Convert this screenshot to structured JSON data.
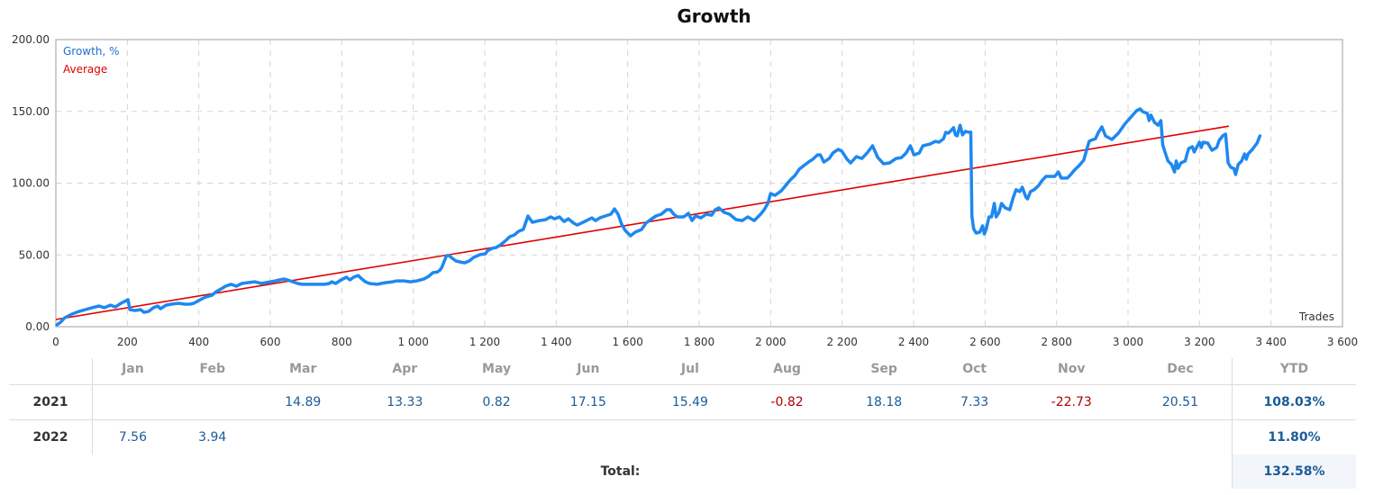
{
  "chart_data": {
    "type": "line",
    "title": "Growth",
    "xlabel": "Trades",
    "ylabel": "",
    "xlim": [
      0,
      3600
    ],
    "ylim": [
      0,
      200
    ],
    "x_ticks": [
      "0",
      "200",
      "400",
      "600",
      "800",
      "1 000",
      "1 200",
      "1 400",
      "1 600",
      "1 800",
      "2 000",
      "2 200",
      "2 400",
      "2 600",
      "2 800",
      "3 000",
      "3 200",
      "3 400",
      "3 600"
    ],
    "y_ticks": [
      "0.00",
      "50.00",
      "100.00",
      "150.00",
      "200.00"
    ],
    "grid": true,
    "legend_position": "top-left",
    "series": [
      {
        "name": "Growth, %",
        "color": "#1e88f0",
        "points": [
          [
            3,
            1.3
          ],
          [
            13,
            3.1
          ],
          [
            25,
            6.3
          ],
          [
            45,
            8.8
          ],
          [
            66,
            10.7
          ],
          [
            83,
            11.9
          ],
          [
            101,
            13.2
          ],
          [
            121,
            14.4
          ],
          [
            136,
            13.2
          ],
          [
            152,
            15
          ],
          [
            167,
            13.8
          ],
          [
            182,
            16.3
          ],
          [
            192,
            17.6
          ],
          [
            202,
            18.8
          ],
          [
            207,
            11.9
          ],
          [
            222,
            11.3
          ],
          [
            237,
            11.9
          ],
          [
            247,
            10
          ],
          [
            260,
            10.7
          ],
          [
            273,
            13.2
          ],
          [
            285,
            14.4
          ],
          [
            293,
            12.5
          ],
          [
            308,
            15
          ],
          [
            323,
            15.7
          ],
          [
            343,
            16.3
          ],
          [
            361,
            15.7
          ],
          [
            374,
            15.7
          ],
          [
            386,
            16.3
          ],
          [
            404,
            18.8
          ],
          [
            419,
            20.7
          ],
          [
            437,
            21.9
          ],
          [
            449,
            24.5
          ],
          [
            462,
            26.3
          ],
          [
            475,
            28.2
          ],
          [
            490,
            29.5
          ],
          [
            505,
            28.2
          ],
          [
            520,
            30.1
          ],
          [
            538,
            30.7
          ],
          [
            556,
            31.3
          ],
          [
            576,
            30.1
          ],
          [
            588,
            30.7
          ],
          [
            601,
            31.3
          ],
          [
            614,
            31.9
          ],
          [
            626,
            32.6
          ],
          [
            639,
            33.2
          ],
          [
            656,
            31.9
          ],
          [
            677,
            30.1
          ],
          [
            689,
            29.5
          ],
          [
            702,
            29.5
          ],
          [
            727,
            29.5
          ],
          [
            752,
            29.5
          ],
          [
            765,
            30.1
          ],
          [
            772,
            31.3
          ],
          [
            783,
            30.1
          ],
          [
            798,
            32.6
          ],
          [
            813,
            34.5
          ],
          [
            823,
            32.6
          ],
          [
            833,
            34.5
          ],
          [
            846,
            35.7
          ],
          [
            853,
            33.9
          ],
          [
            866,
            31.3
          ],
          [
            878,
            30.1
          ],
          [
            899,
            29.5
          ],
          [
            909,
            30.1
          ],
          [
            924,
            30.7
          ],
          [
            942,
            31.3
          ],
          [
            954,
            31.9
          ],
          [
            974,
            31.9
          ],
          [
            992,
            31.3
          ],
          [
            1010,
            31.9
          ],
          [
            1030,
            33.2
          ],
          [
            1043,
            35.1
          ],
          [
            1055,
            37.6
          ],
          [
            1068,
            38.2
          ],
          [
            1075,
            39.5
          ],
          [
            1080,
            41.4
          ],
          [
            1085,
            44.5
          ],
          [
            1093,
            49.5
          ],
          [
            1101,
            49.5
          ],
          [
            1106,
            48.3
          ],
          [
            1119,
            45.8
          ],
          [
            1131,
            45.1
          ],
          [
            1144,
            44.5
          ],
          [
            1157,
            45.8
          ],
          [
            1169,
            48.3
          ],
          [
            1187,
            50.2
          ],
          [
            1202,
            50.8
          ],
          [
            1207,
            52.7
          ],
          [
            1220,
            54.5
          ],
          [
            1232,
            55.2
          ],
          [
            1245,
            57.1
          ],
          [
            1257,
            59.6
          ],
          [
            1270,
            62.7
          ],
          [
            1283,
            63.9
          ],
          [
            1295,
            66.5
          ],
          [
            1308,
            67.7
          ],
          [
            1321,
            77.1
          ],
          [
            1333,
            72.7
          ],
          [
            1353,
            73.9
          ],
          [
            1371,
            74.6
          ],
          [
            1384,
            76.5
          ],
          [
            1396,
            75.2
          ],
          [
            1409,
            76.5
          ],
          [
            1422,
            73.3
          ],
          [
            1434,
            75.2
          ],
          [
            1449,
            72.1
          ],
          [
            1459,
            70.8
          ],
          [
            1480,
            73.3
          ],
          [
            1500,
            75.8
          ],
          [
            1510,
            73.9
          ],
          [
            1522,
            75.8
          ],
          [
            1537,
            77.1
          ],
          [
            1553,
            78.4
          ],
          [
            1563,
            82.1
          ],
          [
            1573,
            78.4
          ],
          [
            1583,
            71.5
          ],
          [
            1593,
            67.1
          ],
          [
            1608,
            63.3
          ],
          [
            1621,
            65.8
          ],
          [
            1639,
            67.7
          ],
          [
            1651,
            72.1
          ],
          [
            1664,
            74.6
          ],
          [
            1679,
            77.1
          ],
          [
            1694,
            78.4
          ],
          [
            1709,
            81.5
          ],
          [
            1719,
            81.5
          ],
          [
            1729,
            78.4
          ],
          [
            1739,
            76.5
          ],
          [
            1757,
            76.5
          ],
          [
            1770,
            79
          ],
          [
            1780,
            73.9
          ],
          [
            1790,
            77.1
          ],
          [
            1805,
            75.8
          ],
          [
            1820,
            78.4
          ],
          [
            1835,
            77.7
          ],
          [
            1845,
            81.5
          ],
          [
            1855,
            82.8
          ],
          [
            1870,
            79.6
          ],
          [
            1885,
            78.4
          ],
          [
            1903,
            74.6
          ],
          [
            1921,
            73.9
          ],
          [
            1936,
            76.5
          ],
          [
            1954,
            73.9
          ],
          [
            1972,
            78.4
          ],
          [
            1982,
            81.5
          ],
          [
            1992,
            85.9
          ],
          [
            2000,
            92.8
          ],
          [
            2012,
            91.5
          ],
          [
            2030,
            94.7
          ],
          [
            2042,
            98.4
          ],
          [
            2055,
            102.2
          ],
          [
            2068,
            105.3
          ],
          [
            2080,
            109.7
          ],
          [
            2093,
            112.2
          ],
          [
            2106,
            114.7
          ],
          [
            2118,
            116.6
          ],
          [
            2131,
            119.7
          ],
          [
            2139,
            119.7
          ],
          [
            2149,
            114.7
          ],
          [
            2164,
            117.2
          ],
          [
            2174,
            121
          ],
          [
            2189,
            123.5
          ],
          [
            2199,
            122.3
          ],
          [
            2214,
            116.6
          ],
          [
            2224,
            114.1
          ],
          [
            2240,
            118.5
          ],
          [
            2255,
            117.2
          ],
          [
            2270,
            121
          ],
          [
            2285,
            126
          ],
          [
            2300,
            117.8
          ],
          [
            2316,
            113.5
          ],
          [
            2333,
            114.1
          ],
          [
            2351,
            117.2
          ],
          [
            2366,
            117.8
          ],
          [
            2379,
            121
          ],
          [
            2391,
            126
          ],
          [
            2401,
            119.7
          ],
          [
            2416,
            121
          ],
          [
            2426,
            126
          ],
          [
            2446,
            127.2
          ],
          [
            2461,
            129.1
          ],
          [
            2471,
            128.5
          ],
          [
            2484,
            131
          ],
          [
            2490,
            135.4
          ],
          [
            2497,
            134.8
          ],
          [
            2505,
            136.7
          ],
          [
            2512,
            138.6
          ],
          [
            2517,
            133.6
          ],
          [
            2522,
            133
          ],
          [
            2530,
            140.4
          ],
          [
            2537,
            133.6
          ],
          [
            2545,
            136.1
          ],
          [
            2553,
            135.5
          ],
          [
            2560,
            135.5
          ],
          [
            2563,
            77.1
          ],
          [
            2568,
            68.3
          ],
          [
            2575,
            65.2
          ],
          [
            2585,
            65.8
          ],
          [
            2593,
            70.2
          ],
          [
            2598,
            64.6
          ],
          [
            2603,
            67.7
          ],
          [
            2611,
            76.5
          ],
          [
            2618,
            76.5
          ],
          [
            2626,
            85.9
          ],
          [
            2631,
            76.5
          ],
          [
            2639,
            79.6
          ],
          [
            2646,
            85.9
          ],
          [
            2656,
            82.8
          ],
          [
            2669,
            81.5
          ],
          [
            2679,
            90.3
          ],
          [
            2687,
            95.4
          ],
          [
            2697,
            94.1
          ],
          [
            2704,
            97.2
          ],
          [
            2714,
            90.3
          ],
          [
            2719,
            89
          ],
          [
            2727,
            94.1
          ],
          [
            2737,
            95.4
          ],
          [
            2750,
            98.4
          ],
          [
            2757,
            101
          ],
          [
            2770,
            104.7
          ],
          [
            2780,
            104.7
          ],
          [
            2795,
            104.7
          ],
          [
            2805,
            107.8
          ],
          [
            2813,
            103.5
          ],
          [
            2830,
            103.5
          ],
          [
            2840,
            106
          ],
          [
            2850,
            109.1
          ],
          [
            2863,
            112.2
          ],
          [
            2876,
            116
          ],
          [
            2891,
            129.1
          ],
          [
            2896,
            129.8
          ],
          [
            2909,
            131
          ],
          [
            2917,
            135.4
          ],
          [
            2927,
            139.2
          ],
          [
            2937,
            132.9
          ],
          [
            2955,
            130.4
          ],
          [
            2973,
            134.8
          ],
          [
            2991,
            141.1
          ],
          [
            3024,
            150.5
          ],
          [
            3034,
            151.7
          ],
          [
            3041,
            149.8
          ],
          [
            3054,
            148.6
          ],
          [
            3059,
            143.6
          ],
          [
            3064,
            147.4
          ],
          [
            3074,
            142.3
          ],
          [
            3084,
            140.4
          ],
          [
            3092,
            143.6
          ],
          [
            3097,
            126.6
          ],
          [
            3105,
            120.4
          ],
          [
            3112,
            115.4
          ],
          [
            3122,
            112.9
          ],
          [
            3130,
            107.8
          ],
          [
            3135,
            115.4
          ],
          [
            3140,
            110.3
          ],
          [
            3148,
            114.1
          ],
          [
            3160,
            115.4
          ],
          [
            3165,
            120.4
          ],
          [
            3170,
            124.1
          ],
          [
            3180,
            125.4
          ],
          [
            3185,
            121.6
          ],
          [
            3190,
            124.1
          ],
          [
            3200,
            128.5
          ],
          [
            3205,
            124.8
          ],
          [
            3210,
            128.5
          ],
          [
            3223,
            127.9
          ],
          [
            3235,
            122.9
          ],
          [
            3248,
            124.8
          ],
          [
            3255,
            129.8
          ],
          [
            3265,
            132.9
          ],
          [
            3273,
            134.2
          ],
          [
            3280,
            114.1
          ],
          [
            3288,
            111
          ],
          [
            3296,
            110.3
          ],
          [
            3301,
            106
          ],
          [
            3308,
            112.9
          ],
          [
            3318,
            115.4
          ],
          [
            3326,
            120.4
          ],
          [
            3331,
            116.6
          ],
          [
            3336,
            120.4
          ],
          [
            3348,
            123.5
          ],
          [
            3361,
            127.9
          ],
          [
            3369,
            132.9
          ]
        ]
      },
      {
        "name": "Average",
        "color": "#e00000",
        "points": [
          [
            0,
            5.0
          ],
          [
            3282,
            139.7
          ]
        ]
      }
    ]
  },
  "header": {
    "title": "Growth"
  },
  "legend": {
    "growth": "Growth, %",
    "average": "Average"
  },
  "axis": {
    "x_title": "Trades"
  },
  "table": {
    "months": [
      "Jan",
      "Feb",
      "Mar",
      "Apr",
      "May",
      "Jun",
      "Jul",
      "Aug",
      "Sep",
      "Oct",
      "Nov",
      "Dec"
    ],
    "ytd_label": "YTD",
    "rows": [
      {
        "year": "2021",
        "values": [
          "",
          "",
          "14.89",
          "13.33",
          "0.82",
          "17.15",
          "15.49",
          "-0.82",
          "18.18",
          "7.33",
          "-22.73",
          "20.51"
        ],
        "ytd": "108.03%"
      },
      {
        "year": "2022",
        "values": [
          "7.56",
          "3.94",
          "",
          "",
          "",
          "",
          "",
          "",
          "",
          "",
          "",
          ""
        ],
        "ytd": "11.80%"
      }
    ],
    "total_label": "Total:",
    "total_value": "132.58%"
  }
}
